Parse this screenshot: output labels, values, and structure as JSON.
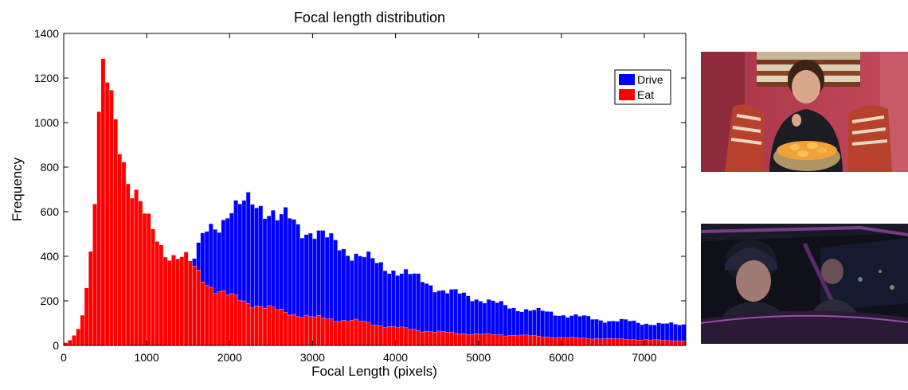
{
  "chart_data": {
    "type": "bar",
    "title": "Focal length distribution",
    "xlabel": "Focal Length (pixels)",
    "ylabel": "Frequency",
    "xlim": [
      0,
      7500
    ],
    "ylim": [
      0,
      1400
    ],
    "xticks": [
      0,
      1000,
      2000,
      3000,
      4000,
      5000,
      6000,
      7000
    ],
    "yticks": [
      0,
      200,
      400,
      600,
      800,
      1000,
      1200,
      1400
    ],
    "bin_width": 50,
    "grid": false,
    "legend": "top-right",
    "series": [
      {
        "name": "Drive",
        "color": "#0000ff",
        "x": [
          0,
          1000,
          1300,
          1500,
          1600,
          1700,
          1800,
          1900,
          2000,
          2100,
          2200,
          2300,
          2400,
          2500,
          2600,
          2700,
          2800,
          2900,
          3000,
          3200,
          3400,
          3600,
          3800,
          4000,
          4200,
          4400,
          4600,
          4800,
          5000,
          5200,
          5400,
          5600,
          5800,
          6000,
          6200,
          6400,
          6600,
          6800,
          7000,
          7200,
          7500
        ],
        "y": [
          0,
          10,
          150,
          370,
          400,
          500,
          530,
          560,
          620,
          610,
          630,
          640,
          630,
          610,
          560,
          570,
          540,
          520,
          520,
          470,
          430,
          400,
          360,
          340,
          310,
          280,
          240,
          230,
          210,
          190,
          170,
          160,
          150,
          140,
          130,
          120,
          110,
          110,
          100,
          95,
          95
        ]
      },
      {
        "name": "Eat",
        "color": "#ff0000",
        "x": [
          0,
          100,
          200,
          300,
          350,
          400,
          450,
          500,
          550,
          600,
          650,
          700,
          750,
          800,
          850,
          900,
          950,
          1000,
          1050,
          1100,
          1150,
          1200,
          1300,
          1400,
          1500,
          1600,
          1700,
          1800,
          1900,
          2000,
          2200,
          2400,
          2600,
          2800,
          3000,
          3500,
          4000,
          4500,
          5000,
          5500,
          6000,
          7000,
          7500
        ],
        "y": [
          5,
          30,
          90,
          330,
          520,
          800,
          1190,
          1200,
          1120,
          1040,
          960,
          890,
          800,
          730,
          700,
          660,
          600,
          560,
          520,
          490,
          460,
          430,
          410,
          400,
          380,
          330,
          290,
          260,
          240,
          220,
          195,
          175,
          155,
          140,
          125,
          110,
          80,
          60,
          50,
          45,
          35,
          25,
          20
        ]
      }
    ]
  },
  "photos": {
    "top_icon": "boy-eating-chips-photo",
    "bottom_icon": "driver-in-car-at-night-photo"
  }
}
